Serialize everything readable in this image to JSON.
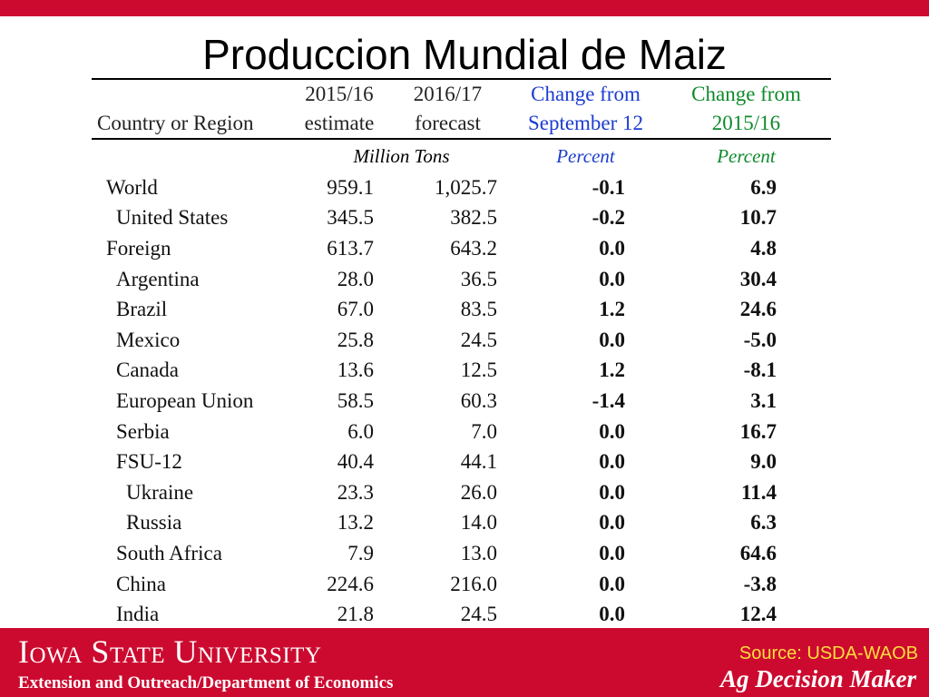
{
  "slide": {
    "title": "Produccion Mundial de Maiz",
    "accent_color": "#cc0a2f",
    "blue_color": "#1c3ccf",
    "green_color": "#0d8a2b"
  },
  "table": {
    "headers_row1": [
      "",
      "2015/16",
      "2016/17",
      "Change from",
      "Change from"
    ],
    "headers_row2": [
      "Country or Region",
      "estimate",
      "forecast",
      "September 12",
      "2015/16"
    ],
    "units": [
      "",
      "Million Tons",
      "",
      "Percent",
      "Percent"
    ],
    "rows": [
      {
        "country": "World",
        "level": 0,
        "v2015": "959.1",
        "v2016": "1,025.7",
        "chg_sep": "-0.1",
        "chg_prev": "6.9"
      },
      {
        "country": "United States",
        "level": 1,
        "v2015": "345.5",
        "v2016": "382.5",
        "chg_sep": "-0.2",
        "chg_prev": "10.7"
      },
      {
        "country": "Foreign",
        "level": 0,
        "v2015": "613.7",
        "v2016": "643.2",
        "chg_sep": "0.0",
        "chg_prev": "4.8"
      },
      {
        "country": "Argentina",
        "level": 1,
        "v2015": "28.0",
        "v2016": "36.5",
        "chg_sep": "0.0",
        "chg_prev": "30.4"
      },
      {
        "country": "Brazil",
        "level": 1,
        "v2015": "67.0",
        "v2016": "83.5",
        "chg_sep": "1.2",
        "chg_prev": "24.6"
      },
      {
        "country": "Mexico",
        "level": 1,
        "v2015": "25.8",
        "v2016": "24.5",
        "chg_sep": "0.0",
        "chg_prev": "-5.0"
      },
      {
        "country": "Canada",
        "level": 1,
        "v2015": "13.6",
        "v2016": "12.5",
        "chg_sep": "1.2",
        "chg_prev": "-8.1"
      },
      {
        "country": "European Union",
        "level": 1,
        "v2015": "58.5",
        "v2016": "60.3",
        "chg_sep": "-1.4",
        "chg_prev": "3.1"
      },
      {
        "country": "Serbia",
        "level": 1,
        "v2015": "6.0",
        "v2016": "7.0",
        "chg_sep": "0.0",
        "chg_prev": "16.7"
      },
      {
        "country": "FSU-12",
        "level": 1,
        "v2015": "40.4",
        "v2016": "44.1",
        "chg_sep": "0.0",
        "chg_prev": "9.0"
      },
      {
        "country": "Ukraine",
        "level": 2,
        "v2015": "23.3",
        "v2016": "26.0",
        "chg_sep": "0.0",
        "chg_prev": "11.4"
      },
      {
        "country": "Russia",
        "level": 2,
        "v2015": "13.2",
        "v2016": "14.0",
        "chg_sep": "0.0",
        "chg_prev": "6.3"
      },
      {
        "country": "South Africa",
        "level": 1,
        "v2015": "7.9",
        "v2016": "13.0",
        "chg_sep": "0.0",
        "chg_prev": "64.6"
      },
      {
        "country": "China",
        "level": 1,
        "v2015": "224.6",
        "v2016": "216.0",
        "chg_sep": "0.0",
        "chg_prev": "-3.8"
      },
      {
        "country": "India",
        "level": 1,
        "v2015": "21.8",
        "v2016": "24.5",
        "chg_sep": "0.0",
        "chg_prev": "12.4"
      }
    ]
  },
  "footer": {
    "university": "Iowa State University",
    "department": "Extension and Outreach/Department of Economics",
    "source": "Source: USDA-WAOB",
    "brand": "Ag Decision Maker"
  }
}
